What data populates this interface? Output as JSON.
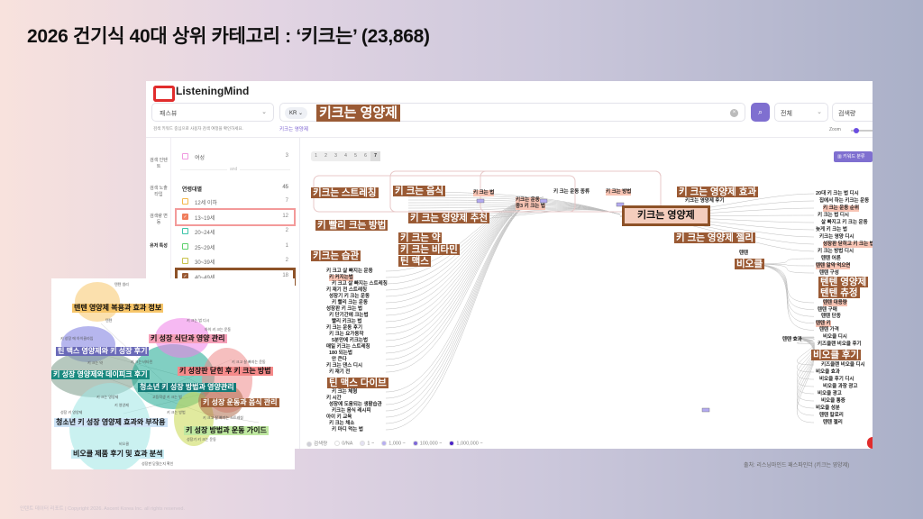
{
  "title": "2026 건기식 40대 상위 카테고리 : ‘키크는’ (23,868)",
  "app": {
    "brand": "ListeningMind",
    "brand_color": "#e12c2c",
    "accent": "#7f6fd0"
  },
  "toolbar": {
    "view_select": "패스뷰",
    "country": "KR",
    "search_value": "키크는 영양제",
    "scope_select": "전체",
    "metric_select": "검색량",
    "hint": "검색 키워드 중심으로 사용자 검색 여정을 확인하세요.",
    "hint_keyword": "키크는 영양제",
    "zoom_label": "Zoom"
  },
  "nav": [
    {
      "label": "검색 인텐트"
    },
    {
      "label": "검색 노출타입"
    },
    {
      "label": "검색량 변동"
    },
    {
      "label": "유저 특성",
      "active": true
    }
  ],
  "filters": {
    "gender_item": {
      "label": "여성",
      "count": "3"
    },
    "divider": "and",
    "age_header": {
      "label": "연령대별",
      "count": "45"
    },
    "ages": [
      {
        "label": "12세 이하",
        "count": "7",
        "checked": false,
        "color": "#f4b84a"
      },
      {
        "label": "13~19세",
        "count": "12",
        "checked": true,
        "color": "#f07e5c",
        "highlight": "#f39a9a"
      },
      {
        "label": "20~24세",
        "count": "2",
        "checked": false,
        "color": "#3cc4a8"
      },
      {
        "label": "25~29세",
        "count": "1",
        "checked": false,
        "color": "#5bd06a"
      },
      {
        "label": "30~39세",
        "count": "2",
        "checked": false,
        "color": "#c8c24a"
      },
      {
        "label": "40~49세",
        "count": "18",
        "checked": true,
        "color": "#9a5a34",
        "highlight": "#8d5228"
      },
      {
        "label": "50세 이상",
        "count": "3",
        "checked": false,
        "color": "#c58ae8"
      }
    ]
  },
  "pager": {
    "pages": [
      "1",
      "2",
      "3",
      "4",
      "5",
      "6",
      "7"
    ],
    "active": "7"
  },
  "keyword_button": "키워드 분류",
  "graph": {
    "hub": "키크는 영양제",
    "big_labels": [
      "키크는 스트레칭",
      "키 크는 음식",
      "키 빨리 크는 방법",
      "키 크는 영양제 추천",
      "키 크는 약",
      "키 크는 비타민",
      "키크는 습관",
      "틴 맥스",
      "키 크는 영양제 효과",
      "키 크는 영양제 젤리",
      "비오클",
      "텐텐 영양제",
      "텐텐 츄정",
      "비오클 후기",
      "틴 맥스 다이브"
    ],
    "mid_labels": [
      {
        "t": "키 크는 법",
        "pink": true
      },
      {
        "t": "키크는 운동",
        "pink": true
      },
      {
        "t": "중3 키 크는 법",
        "pink": true
      },
      {
        "t": "키 크는 운동 종류"
      },
      {
        "t": "키 크는 방법",
        "pink": true
      },
      {
        "t": "키크는 영양제 후기"
      },
      {
        "t": "텐텐"
      },
      {
        "t": "텐텐 효과"
      }
    ],
    "left_labels": [
      {
        "t": "키 크고 살 빠지는 운동"
      },
      {
        "t": "키 커지는법",
        "pink": true
      },
      {
        "t": "키 크고 살 빠지는 스트레칭"
      },
      {
        "t": "키 재기 전 스트레칭"
      },
      {
        "t": "성장기 키 크는 운동"
      },
      {
        "t": "키 빨리 크는 운동"
      },
      {
        "t": "성장판 키 크는 법"
      },
      {
        "t": "키 단기간에 크는법"
      },
      {
        "t": "빨리 키크는 법"
      },
      {
        "t": "키 크는 운동 후기"
      },
      {
        "t": "키 크는 요가동작"
      },
      {
        "t": "5분만에 키크는법"
      },
      {
        "t": "매일 키크는 스트레칭"
      },
      {
        "t": "180 되는법"
      },
      {
        "t": "안 큰다"
      },
      {
        "t": "키 크는 댄스 디시"
      },
      {
        "t": "키 재기 전"
      },
      {
        "t": "키 크는 체형"
      },
      {
        "t": "키 시간"
      },
      {
        "t": "성장에 도움되는 생활습관"
      },
      {
        "t": "키크는 음식 레시피"
      },
      {
        "t": "아이 키 교육"
      },
      {
        "t": "키 크는 채소"
      },
      {
        "t": "키 마디 먹는 법"
      }
    ],
    "right_labels": [
      {
        "t": "20대 키 크는 법 디시"
      },
      {
        "t": "집에서 하는 키크는 운동"
      },
      {
        "t": "키 크는 운동 순위",
        "pink": true
      },
      {
        "t": "키 크는 법 디시"
      },
      {
        "t": "살 빠지고 키 크는 운동"
      },
      {
        "t": "늦게 키 크는 법"
      },
      {
        "t": "키크는 영양 디시"
      },
      {
        "t": "성장판 닫히고 키 크는 법",
        "pink": true
      },
      {
        "t": "키 크는 방법 디시"
      },
      {
        "t": "텐텐 어른"
      },
      {
        "t": "텐텐 알약 먹으면",
        "pink": true
      },
      {
        "t": "텐텐 구성"
      },
      {
        "t": "텐텐 대용량",
        "pink": true
      },
      {
        "t": "텐텐 구매"
      },
      {
        "t": "텐텐 단종"
      },
      {
        "t": "텐텐 키",
        "pink": true
      },
      {
        "t": "텐텐 가격"
      },
      {
        "t": "비오클 디시"
      },
      {
        "t": "키즈클랜 비오클 후기"
      },
      {
        "t": "키즈클랜 비오클 디시"
      },
      {
        "t": "비오클 효과"
      },
      {
        "t": "비오클 후기 디시"
      },
      {
        "t": "비오클 과장 광고"
      },
      {
        "t": "비오클 광고"
      },
      {
        "t": "비오클 통증"
      },
      {
        "t": "비오클 성분"
      },
      {
        "t": "텐텐 칼로리"
      },
      {
        "t": "텐텐 젤리"
      }
    ]
  },
  "legend": [
    {
      "label": "검색량",
      "color": "#cfcfd8"
    },
    {
      "label": "0/NA",
      "color": "#ffffff"
    },
    {
      "label": "1 ~",
      "color": "#e4e2f2"
    },
    {
      "label": "1,000 ~",
      "color": "#b7aef0"
    },
    {
      "label": "100,000 ~",
      "color": "#7d68d8"
    },
    {
      "label": "1,000,000 ~",
      "color": "#4a22c8"
    }
  ],
  "clusters": [
    {
      "label": "텐텐 영양제 복용과 효과 정보",
      "bg": "#f7c66a",
      "fg": "#111"
    },
    {
      "label": "틴 맥스 영양제와 키 성장 후기",
      "bg": "#6a6ab8",
      "fg": "#fff"
    },
    {
      "label": "키 성장 식단과 영양 관리",
      "bg": "#f6a0b8",
      "fg": "#111"
    },
    {
      "label": "키 성장 영양제와 데이피크 후기",
      "bg": "#1a8a80",
      "fg": "#fff"
    },
    {
      "label": "청소년 키 성장 방법과 영양관리",
      "bg": "#127a78",
      "fg": "#fff"
    },
    {
      "label": "키 성장판 닫힌 후 키 크는 방법",
      "bg": "#f58a8a",
      "fg": "#111"
    },
    {
      "label": "키 성장 운동과 음식 관리",
      "bg": "#a0603a",
      "fg": "#fff"
    },
    {
      "label": "청소년 키 성장 영양제 효과와 부작용",
      "bg": "#cfe4f7",
      "fg": "#111"
    },
    {
      "label": "키 성장 방법과 운동 가이드",
      "bg": "#bfe8a0",
      "fg": "#111"
    },
    {
      "label": "비오클 제품 후기 및 효과 분석",
      "bg": "#c8ecf4",
      "fg": "#111"
    }
  ],
  "cluster_small": [
    "텐텐 생리",
    "텐텐",
    "키 크는 법 디시",
    "아이 키 크는 운동",
    "키 성장 에 아이클라임",
    "키 크는 비타민",
    "키 크는 약",
    "키 크는 영양제",
    "키 영양제",
    "성장 키 영양제",
    "고등학생 키 크는 법",
    "키 크는 방법",
    "성장기 키 크는 운동",
    "비오클",
    "성장판 닫혔는지 확인",
    "키 크고 살 빠지는 운동",
    "키 크고 살 빠지는 스트레칭"
  ],
  "source": "출처: 리스닝마인드 패스파인더 (키크는 영양제)",
  "footer": "인텐트 데이터 리포트 | Copyright 2026. Ascent Korea Inc. all rights reserved."
}
